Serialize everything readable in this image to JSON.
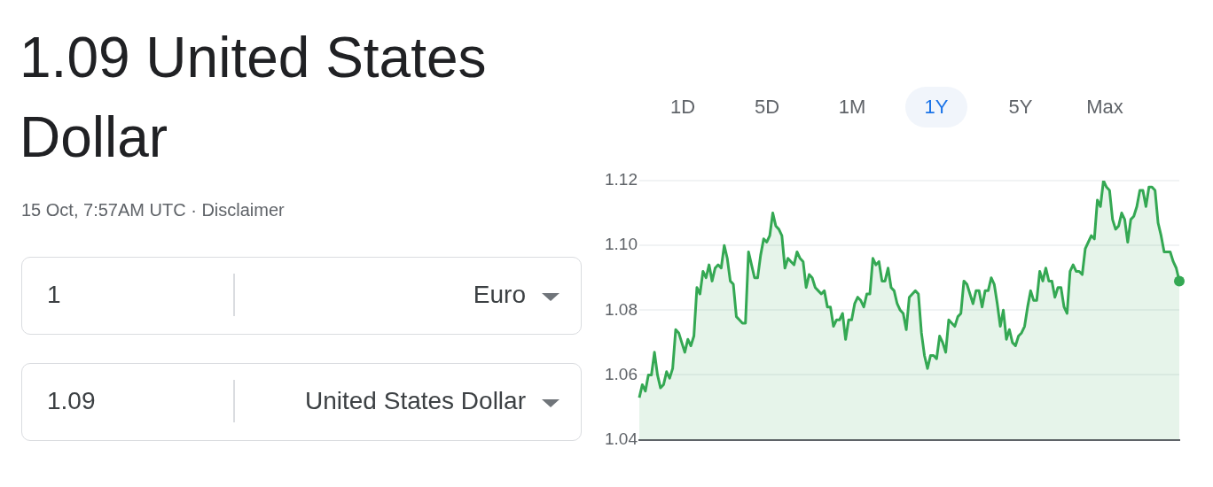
{
  "chart_data": {
    "type": "area",
    "title": "1.09 United States Dollar",
    "subtitle": "15 Oct, 7:57AM UTC · Disclaimer",
    "annotations": [
      "1",
      "Euro",
      "1.09",
      "United States Dollar",
      "1D",
      "5D",
      "1M",
      "1Y",
      "5Y",
      "Max"
    ],
    "categories": [
      null,
      null,
      null,
      null,
      null,
      null,
      null,
      null,
      null,
      null,
      null,
      null,
      null,
      null,
      null,
      null,
      null,
      null,
      null,
      null,
      null,
      null,
      null,
      null,
      null,
      null,
      null,
      null,
      null,
      null,
      null,
      null,
      null,
      null,
      null,
      null,
      null,
      null,
      null,
      null,
      null,
      null,
      null,
      null,
      null,
      null,
      null,
      null,
      null,
      null,
      null,
      null,
      null,
      null,
      null,
      null,
      null,
      null,
      null,
      null,
      null,
      null,
      null,
      null,
      null,
      null,
      null,
      null,
      null,
      null,
      null,
      null,
      null,
      null,
      null,
      null,
      null,
      null,
      null,
      null,
      null,
      null,
      null,
      null,
      null,
      null,
      null,
      null,
      null,
      null,
      null,
      null,
      null,
      null,
      null,
      null,
      null,
      null,
      null,
      null,
      null,
      null,
      null,
      null,
      null,
      null,
      null,
      null,
      null,
      null,
      null,
      null,
      null,
      null,
      null,
      null,
      null,
      null,
      null,
      null,
      null,
      null,
      null,
      null,
      null,
      null,
      null,
      null,
      null,
      null,
      null,
      null,
      null,
      null,
      null,
      null,
      null,
      null,
      null,
      null,
      null,
      null,
      null,
      null,
      null,
      null,
      null,
      null,
      null,
      null,
      null,
      null,
      null,
      null,
      null,
      null,
      null,
      null,
      null,
      null,
      null,
      null,
      null,
      null,
      null,
      null,
      null,
      null,
      null,
      null,
      null,
      null,
      null,
      null,
      null,
      null,
      null,
      null,
      null
    ],
    "series": [
      {
        "color": "#34a853",
        "values": [
          1.053,
          1.057,
          1.055,
          1.06,
          1.06,
          1.067,
          1.06,
          1.056,
          1.057,
          1.061,
          1.059,
          1.062,
          1.074,
          1.073,
          1.07,
          1.067,
          1.071,
          1.069,
          1.072,
          1.087,
          1.085,
          1.092,
          1.09,
          1.094,
          1.089,
          1.093,
          1.094,
          1.093,
          1.1,
          1.096,
          1.089,
          1.088,
          1.078,
          1.077,
          1.076,
          1.076,
          1.098,
          1.094,
          1.09,
          1.09,
          1.097,
          1.102,
          1.101,
          1.103,
          1.11,
          1.106,
          1.105,
          1.103,
          1.093,
          1.096,
          1.095,
          1.094,
          1.098,
          1.096,
          1.095,
          1.087,
          1.091,
          1.09,
          1.087,
          1.086,
          1.085,
          1.086,
          1.081,
          1.081,
          1.075,
          1.077,
          1.077,
          1.079,
          1.071,
          1.077,
          1.077,
          1.082,
          1.084,
          1.083,
          1.081,
          1.085,
          1.085,
          1.096,
          1.094,
          1.095,
          1.089,
          1.089,
          1.093,
          1.087,
          1.086,
          1.082,
          1.08,
          1.079,
          1.074,
          1.084,
          1.085,
          1.086,
          1.085,
          1.073,
          1.066,
          1.062,
          1.066,
          1.066,
          1.065,
          1.072,
          1.07,
          1.067,
          1.077,
          1.076,
          1.075,
          1.078,
          1.079,
          1.089,
          1.088,
          1.085,
          1.082,
          1.086,
          1.086,
          1.081,
          1.086,
          1.086,
          1.09,
          1.088,
          1.082,
          1.075,
          1.08,
          1.071,
          1.074,
          1.07,
          1.069,
          1.072,
          1.073,
          1.075,
          1.081,
          1.086,
          1.083,
          1.083,
          1.092,
          1.089,
          1.093,
          1.089,
          1.089,
          1.084,
          1.087,
          1.087,
          1.081,
          1.079,
          1.092,
          1.094,
          1.092,
          1.092,
          1.091,
          1.099,
          1.101,
          1.103,
          1.102,
          1.114,
          1.112,
          1.12,
          1.118,
          1.117,
          1.108,
          1.105,
          1.106,
          1.11,
          1.108,
          1.101,
          1.108,
          1.109,
          1.112,
          1.117,
          1.117,
          1.112,
          1.118,
          1.118,
          1.117,
          1.107,
          1.103,
          1.098,
          1.098,
          1.098,
          1.095,
          1.093,
          1.089
        ]
      }
    ],
    "ylim": [
      1.04,
      1.12
    ],
    "yticks": [
      1.04,
      1.06,
      1.08,
      {
        "value": 1.1,
        "label": "1.10"
      },
      1.12
    ],
    "grid": "y"
  }
}
